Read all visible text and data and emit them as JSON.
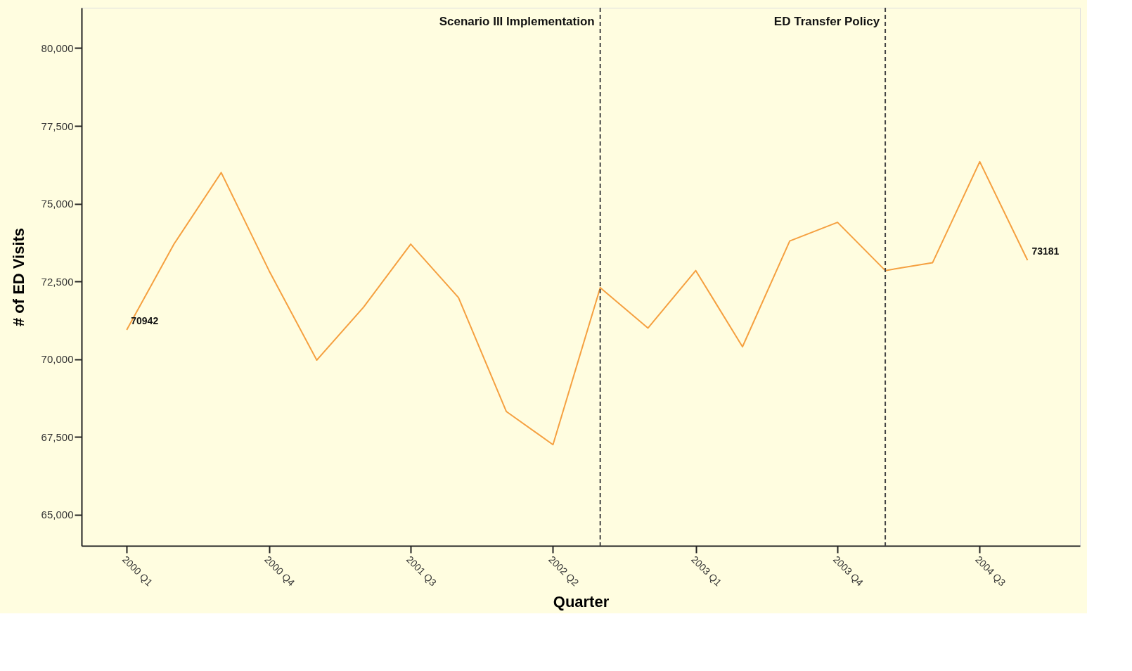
{
  "chart_data": {
    "type": "line",
    "xlabel": "Quarter",
    "ylabel": "# of ED Visits",
    "x": [
      "2000-01",
      "2000-04",
      "2000-07",
      "2000-10",
      "2001-01",
      "2001-04",
      "2001-07",
      "2001-10",
      "2002-01",
      "2002-04",
      "2002-07",
      "2002-10",
      "2003-01",
      "2003-04",
      "2003-07",
      "2003-10",
      "2004-01",
      "2004-04",
      "2004-07",
      "2004-10"
    ],
    "series": [
      {
        "color": "#f5a040",
        "values": [
          70942,
          73700,
          76000,
          72850,
          69970,
          71670,
          73700,
          71980,
          68320,
          67250,
          72300,
          71000,
          72850,
          70400,
          73800,
          74400,
          72850,
          73100,
          76350,
          73181
        ],
        "value_labels": [
          "70942",
          null,
          null,
          null,
          null,
          null,
          null,
          null,
          null,
          null,
          null,
          null,
          null,
          null,
          null,
          null,
          null,
          null,
          null,
          "73181"
        ]
      }
    ],
    "xlim": [
      "1999-10-06",
      "2005-01-10"
    ],
    "xticks": [
      {
        "value": "2000-01",
        "label": "2000 Q1"
      },
      {
        "value": "2000-10",
        "label": "2000 Q4"
      },
      {
        "value": "2001-07",
        "label": "2001 Q3"
      },
      {
        "value": "2002-04",
        "label": "2002 Q2"
      },
      {
        "value": "2003-01",
        "label": "2003 Q1"
      },
      {
        "value": "2003-10",
        "label": "2003 Q4"
      },
      {
        "value": "2004-07",
        "label": "2004 Q3"
      }
    ],
    "ylim": [
      64000,
      81300
    ],
    "yticks": [
      {
        "value": 65000,
        "label": "65,000"
      },
      {
        "value": 67500,
        "label": "67,500"
      },
      {
        "value": 70000,
        "label": "70,000"
      },
      {
        "value": 72500,
        "label": "72,500"
      },
      {
        "value": 75000,
        "label": "75,000"
      },
      {
        "value": 77500,
        "label": "77,500"
      },
      {
        "value": 80000,
        "label": "80,000"
      }
    ],
    "ref_lines": [
      {
        "axis": "x",
        "value": "2002-07",
        "label": "Scenario III Implementation",
        "color": "#444444",
        "line_style": "dashed"
      },
      {
        "axis": "x",
        "value": "2004-01",
        "label": "ED Transfer Policy",
        "color": "#444444",
        "line_style": "dashed"
      }
    ],
    "grid": false,
    "marker": "none",
    "line_style": "solid"
  }
}
